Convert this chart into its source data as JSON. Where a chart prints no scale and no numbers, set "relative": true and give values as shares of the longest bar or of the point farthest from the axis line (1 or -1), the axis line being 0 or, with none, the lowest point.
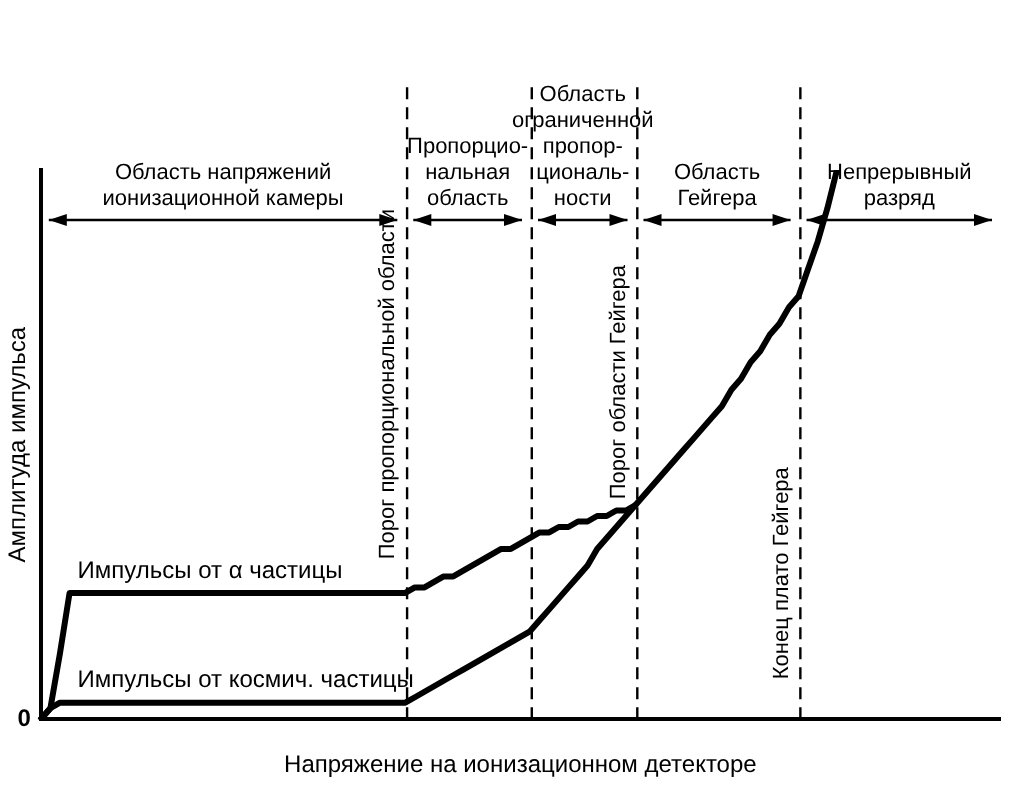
{
  "chart_data": {
    "type": "line",
    "relative": true,
    "xlabel": "Напряжение на ионизационном детекторе",
    "ylabel": "Амплитуда импульса",
    "legend": false,
    "grid": false,
    "marker": "none",
    "line_style": "solid",
    "categories": [
      null,
      null,
      null,
      null,
      null,
      null,
      null,
      null,
      null,
      null,
      null,
      null,
      null,
      null,
      null,
      null,
      null,
      null,
      null,
      null,
      null,
      null,
      null,
      null,
      null,
      null,
      null,
      null,
      null,
      null,
      null,
      null,
      null,
      null,
      null,
      null,
      null,
      null,
      null,
      null,
      null,
      null,
      null,
      null,
      null,
      null,
      null,
      null,
      null,
      null,
      null,
      null,
      null,
      null,
      null,
      null,
      null,
      null,
      null,
      null,
      null,
      null,
      null,
      null,
      null,
      null,
      null,
      null,
      null,
      null,
      null,
      null,
      null,
      null,
      null,
      null,
      null,
      null,
      null,
      null,
      null,
      null,
      null,
      null,
      null,
      null,
      null,
      null,
      null,
      null,
      null,
      null,
      null,
      null,
      null,
      null,
      null,
      null,
      null,
      null,
      null
    ],
    "series": [
      {
        "name": "Импульсы от α частицы",
        "color": "#000000",
        "values": [
          0,
          0.02,
          0.12,
          0.23,
          0.23,
          0.23,
          0.23,
          0.23,
          0.23,
          0.23,
          0.23,
          0.23,
          0.23,
          0.23,
          0.23,
          0.23,
          0.23,
          0.23,
          0.23,
          0.23,
          0.23,
          0.23,
          0.23,
          0.23,
          0.23,
          0.23,
          0.23,
          0.23,
          0.23,
          0.23,
          0.23,
          0.23,
          0.23,
          0.23,
          0.23,
          0.23,
          0.23,
          0.23,
          0.23,
          0.24,
          0.24,
          0.25,
          0.26,
          0.26,
          0.27,
          0.28,
          0.29,
          0.3,
          0.31,
          0.31,
          0.32,
          0.33,
          0.34,
          0.34,
          0.35,
          0.35,
          0.36,
          0.36,
          0.37,
          0.37,
          0.38,
          0.38,
          0.39,
          0.41,
          0.43,
          0.45,
          0.47,
          0.49,
          0.51,
          0.53,
          0.55,
          0.57,
          0.6,
          0.62,
          0.65,
          0.67,
          0.7,
          0.72,
          0.75,
          0.77,
          0.82,
          0.87,
          0.93,
          1,
          null,
          null,
          null,
          null,
          null,
          null,
          null,
          null,
          null,
          null,
          null,
          null,
          null,
          null,
          null,
          null,
          null
        ]
      },
      {
        "name": "Импульсы от космич. частицы",
        "color": "#000000",
        "values": [
          0,
          0.02,
          0.03,
          0.03,
          0.03,
          0.03,
          0.03,
          0.03,
          0.03,
          0.03,
          0.03,
          0.03,
          0.03,
          0.03,
          0.03,
          0.03,
          0.03,
          0.03,
          0.03,
          0.03,
          0.03,
          0.03,
          0.03,
          0.03,
          0.03,
          0.03,
          0.03,
          0.03,
          0.03,
          0.03,
          0.03,
          0.03,
          0.03,
          0.03,
          0.03,
          0.03,
          0.03,
          0.03,
          0.03,
          0.04,
          0.05,
          0.06,
          0.07,
          0.08,
          0.09,
          0.1,
          0.11,
          0.12,
          0.13,
          0.14,
          0.15,
          0.16,
          0.18,
          0.2,
          0.22,
          0.24,
          0.26,
          0.28,
          0.31,
          0.33,
          0.35,
          0.37,
          0.39,
          null,
          null,
          null,
          null,
          null,
          null,
          null,
          null,
          null,
          null,
          null,
          null,
          null,
          null,
          null,
          null,
          null,
          null,
          null,
          null,
          null,
          null,
          null,
          null,
          null,
          null,
          null,
          null,
          null,
          null,
          null,
          null,
          null,
          null,
          null,
          null,
          null,
          null
        ]
      }
    ],
    "annotations": [
      "Порог пропорциональной области",
      "Порог области Гейгера",
      "Конец плато Гейгера",
      "Область напряжений\nионизационной камеры",
      "Пропорцио-\nнальная\nобласть",
      "Область\nограниченной\nпропор-\nциональ-\nности",
      "Область\nГейгера",
      "Непрерывный\nразряд",
      "0"
    ]
  }
}
